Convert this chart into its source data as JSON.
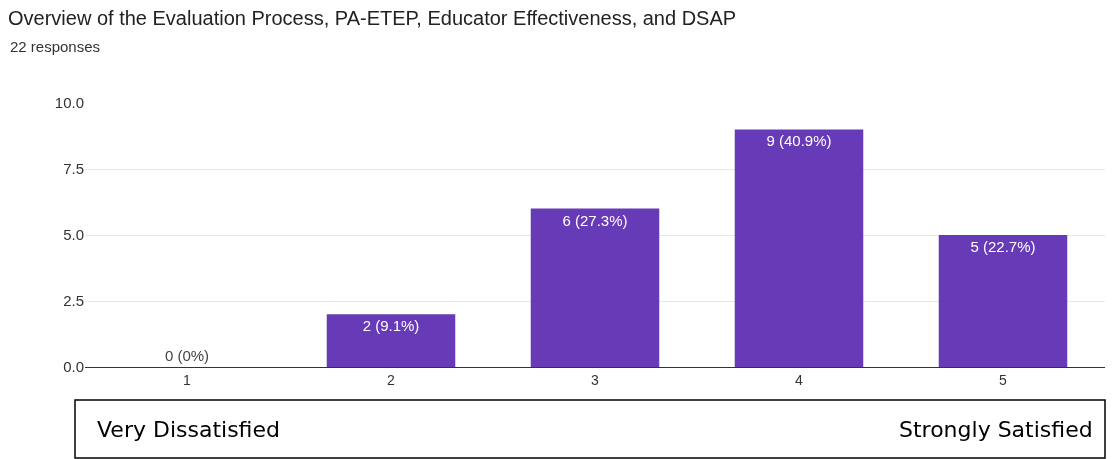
{
  "chart_data": {
    "type": "bar",
    "title": "Overview of the Evaluation Process, PA-ETEP, Educator Effectiveness, and DSAP",
    "subtitle": "22 responses",
    "categories": [
      "1",
      "2",
      "3",
      "4",
      "5"
    ],
    "values": [
      0,
      2,
      6,
      9,
      5
    ],
    "value_labels": [
      "0 (0%)",
      "2 (9.1%)",
      "6 (27.3%)",
      "9 (40.9%)",
      "5 (22.7%)"
    ],
    "color": "#673ab7",
    "ylim": [
      0,
      10
    ],
    "yticks": [
      {
        "value": 0,
        "label": "0.0"
      },
      {
        "value": 2.5,
        "label": "2.5"
      },
      {
        "value": 5,
        "label": "5.0"
      },
      {
        "value": 7.5,
        "label": "7.5"
      },
      {
        "value": 10,
        "label": "10.0"
      }
    ],
    "grid": "y",
    "legend": false,
    "annotations": [
      "Very Dissatisfied",
      "Strongly Satisfied"
    ]
  }
}
